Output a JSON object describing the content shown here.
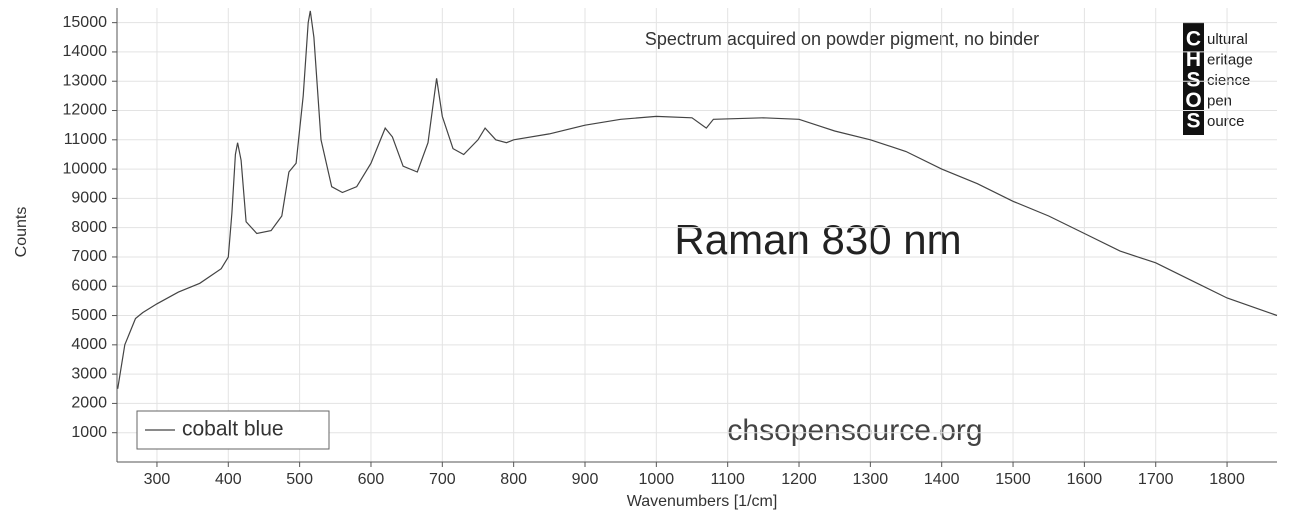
{
  "chart_data": {
    "type": "line",
    "annotations": {
      "note": "Spectrum acquired on powder pigment, no binder",
      "headline": "Raman 830 nm",
      "website": "chsopensource.org"
    },
    "logo": {
      "letters": [
        "C",
        "H",
        "S",
        "O",
        "S"
      ],
      "words": [
        "ultural",
        "eritage",
        "cience",
        "pen",
        "ource"
      ]
    },
    "xlabel": "Wavenumbers [1/cm]",
    "ylabel": "Counts",
    "x": [
      245,
      255,
      270,
      280,
      300,
      330,
      360,
      390,
      400,
      405,
      410,
      413,
      418,
      425,
      440,
      460,
      475,
      485,
      495,
      505,
      512,
      515,
      520,
      530,
      545,
      560,
      580,
      600,
      620,
      630,
      645,
      665,
      680,
      692,
      700,
      715,
      730,
      750,
      760,
      775,
      790,
      800,
      850,
      900,
      950,
      1000,
      1050,
      1070,
      1080,
      1150,
      1200,
      1250,
      1300,
      1350,
      1400,
      1450,
      1500,
      1550,
      1600,
      1650,
      1700,
      1750,
      1800,
      1870
    ],
    "series": [
      {
        "name": "cobalt blue",
        "color": "#444444",
        "values": [
          2500,
          4000,
          4900,
          5100,
          5400,
          5800,
          6100,
          6600,
          7000,
          8500,
          10500,
          10900,
          10300,
          8200,
          7800,
          7900,
          8400,
          9900,
          10200,
          12500,
          15000,
          15400,
          14500,
          11000,
          9400,
          9200,
          9400,
          10200,
          11400,
          11100,
          10100,
          9900,
          10900,
          13100,
          11800,
          10700,
          10500,
          11000,
          11400,
          11000,
          10900,
          11000,
          11200,
          11500,
          11700,
          11800,
          11750,
          11400,
          11700,
          11750,
          11700,
          11300,
          11000,
          10600,
          10000,
          9500,
          8900,
          8400,
          7800,
          7200,
          6800,
          6200,
          5600,
          5000
        ]
      }
    ],
    "xlim": [
      244,
      1870
    ],
    "ylim": [
      0,
      15500
    ],
    "xticks": [
      300,
      400,
      500,
      600,
      700,
      800,
      900,
      1000,
      1100,
      1200,
      1300,
      1400,
      1500,
      1600,
      1700,
      1800
    ],
    "yticks": [
      1000,
      2000,
      3000,
      4000,
      5000,
      6000,
      7000,
      8000,
      9000,
      10000,
      11000,
      12000,
      13000,
      14000,
      15000
    ],
    "grid": true,
    "legend": "lower left"
  }
}
